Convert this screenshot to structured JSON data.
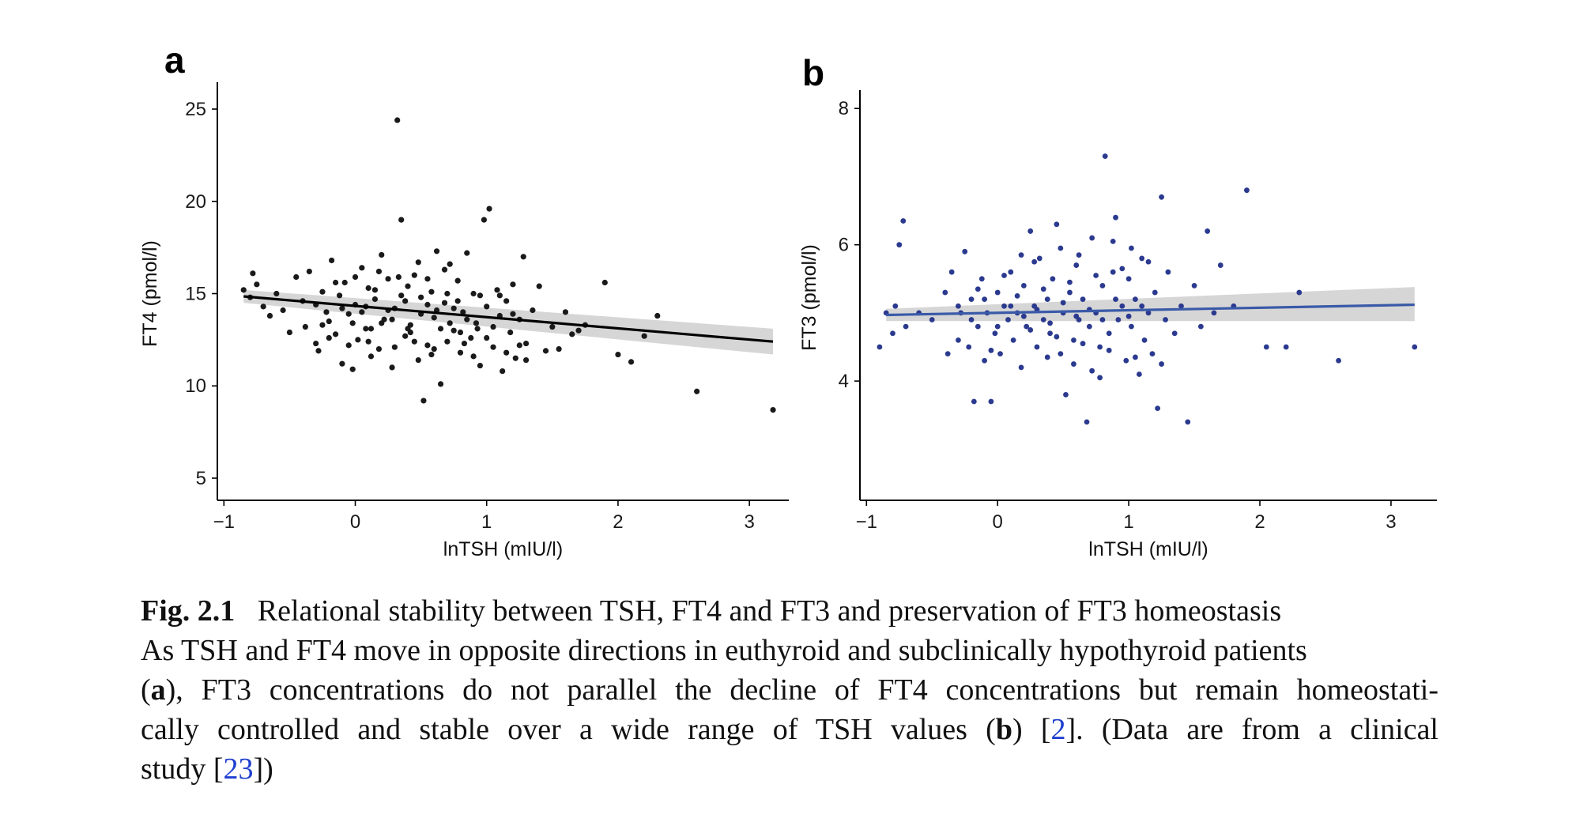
{
  "chart_data": [
    {
      "panel": "a",
      "type": "scatter",
      "xlabel": "lnTSH (mIU/l)",
      "ylabel": "FT4 (pmol/l)",
      "xlim": [
        -1.05,
        3.3
      ],
      "ylim": [
        3.8,
        26.2
      ],
      "xticks": [
        -1,
        0,
        1,
        2,
        3
      ],
      "xtick_labels": [
        "−1",
        "0",
        "1",
        "2",
        "3"
      ],
      "yticks": [
        5,
        10,
        15,
        20,
        25
      ],
      "point_color": "#1a1a1a",
      "line_color": "#000000",
      "band_color": "#cfcfcf",
      "fit": {
        "x": [
          -0.85,
          3.18
        ],
        "y": [
          14.85,
          12.4
        ],
        "ci_lower": [
          14.5,
          11.7
        ],
        "ci_upper": [
          15.2,
          13.1
        ]
      },
      "points": [
        [
          -0.85,
          15.2
        ],
        [
          -0.8,
          14.8
        ],
        [
          -0.78,
          16.1
        ],
        [
          -0.75,
          15.5
        ],
        [
          -0.7,
          14.3
        ],
        [
          -0.65,
          13.8
        ],
        [
          -0.6,
          15.0
        ],
        [
          -0.55,
          14.1
        ],
        [
          -0.5,
          12.9
        ],
        [
          -0.45,
          15.9
        ],
        [
          -0.4,
          14.6
        ],
        [
          -0.38,
          13.2
        ],
        [
          -0.35,
          16.2
        ],
        [
          -0.3,
          12.3
        ],
        [
          -0.28,
          11.9
        ],
        [
          -0.25,
          15.1
        ],
        [
          -0.22,
          14.0
        ],
        [
          -0.2,
          13.5
        ],
        [
          -0.18,
          16.8
        ],
        [
          -0.15,
          12.8
        ],
        [
          -0.12,
          14.9
        ],
        [
          -0.1,
          11.2
        ],
        [
          -0.08,
          15.6
        ],
        [
          -0.05,
          13.9
        ],
        [
          -0.02,
          10.9
        ],
        [
          0.0,
          14.4
        ],
        [
          0.02,
          12.5
        ],
        [
          0.05,
          16.4
        ],
        [
          0.08,
          13.1
        ],
        [
          0.1,
          15.3
        ],
        [
          0.12,
          11.6
        ],
        [
          0.15,
          14.7
        ],
        [
          0.18,
          12.0
        ],
        [
          0.2,
          17.1
        ],
        [
          0.22,
          13.6
        ],
        [
          0.25,
          15.8
        ],
        [
          0.28,
          11.0
        ],
        [
          0.3,
          14.2
        ],
        [
          0.32,
          24.4
        ],
        [
          0.35,
          19.0
        ],
        [
          0.38,
          12.7
        ],
        [
          0.4,
          15.4
        ],
        [
          0.42,
          13.3
        ],
        [
          0.45,
          16.0
        ],
        [
          0.48,
          11.4
        ],
        [
          0.5,
          14.8
        ],
        [
          0.52,
          9.2
        ],
        [
          0.55,
          12.2
        ],
        [
          0.58,
          15.1
        ],
        [
          0.6,
          13.7
        ],
        [
          0.62,
          17.3
        ],
        [
          0.65,
          10.1
        ],
        [
          0.68,
          14.5
        ],
        [
          0.7,
          12.4
        ],
        [
          0.72,
          16.6
        ],
        [
          0.75,
          13.0
        ],
        [
          0.78,
          15.7
        ],
        [
          0.8,
          11.8
        ],
        [
          0.82,
          14.0
        ],
        [
          0.85,
          17.2
        ],
        [
          0.88,
          12.6
        ],
        [
          0.9,
          15.0
        ],
        [
          0.92,
          13.4
        ],
        [
          0.95,
          11.1
        ],
        [
          0.98,
          19.0
        ],
        [
          1.0,
          14.3
        ],
        [
          1.02,
          19.6
        ],
        [
          1.05,
          12.1
        ],
        [
          1.08,
          15.2
        ],
        [
          1.1,
          13.8
        ],
        [
          1.12,
          10.8
        ],
        [
          1.15,
          14.6
        ],
        [
          1.18,
          12.9
        ],
        [
          1.2,
          15.5
        ],
        [
          1.22,
          11.5
        ],
        [
          1.25,
          13.6
        ],
        [
          1.28,
          17.0
        ],
        [
          1.3,
          12.3
        ],
        [
          1.35,
          14.1
        ],
        [
          1.4,
          15.4
        ],
        [
          1.45,
          11.9
        ],
        [
          1.5,
          13.2
        ],
        [
          1.55,
          12.0
        ],
        [
          1.6,
          14.0
        ],
        [
          1.65,
          12.8
        ],
        [
          1.7,
          13.0
        ],
        [
          1.75,
          13.3
        ],
        [
          1.9,
          15.6
        ],
        [
          2.0,
          11.7
        ],
        [
          2.1,
          11.3
        ],
        [
          2.2,
          12.7
        ],
        [
          2.3,
          13.8
        ],
        [
          2.6,
          9.7
        ],
        [
          3.18,
          8.7
        ],
        [
          -0.3,
          14.4
        ],
        [
          -0.25,
          13.3
        ],
        [
          -0.2,
          12.6
        ],
        [
          -0.15,
          15.6
        ],
        [
          -0.1,
          14.2
        ],
        [
          -0.05,
          12.2
        ],
        [
          0.0,
          15.9
        ],
        [
          0.05,
          14.0
        ],
        [
          0.1,
          12.4
        ],
        [
          0.15,
          15.2
        ],
        [
          0.2,
          13.4
        ],
        [
          0.25,
          14.1
        ],
        [
          0.3,
          12.1
        ],
        [
          0.35,
          14.9
        ],
        [
          0.4,
          13.1
        ],
        [
          0.45,
          12.4
        ],
        [
          0.5,
          13.9
        ],
        [
          0.55,
          14.4
        ],
        [
          0.6,
          12.0
        ],
        [
          0.65,
          13.1
        ],
        [
          0.7,
          15.0
        ],
        [
          0.75,
          14.2
        ],
        [
          0.8,
          12.9
        ],
        [
          0.85,
          13.6
        ],
        [
          0.9,
          11.6
        ],
        [
          0.95,
          14.9
        ],
        [
          1.0,
          12.6
        ],
        [
          1.05,
          13.2
        ],
        [
          1.1,
          14.9
        ],
        [
          1.15,
          11.8
        ],
        [
          1.2,
          13.9
        ],
        [
          1.25,
          12.2
        ],
        [
          1.3,
          11.4
        ],
        [
          0.62,
          14.1
        ],
        [
          0.55,
          15.8
        ],
        [
          0.48,
          16.7
        ],
        [
          0.42,
          12.9
        ],
        [
          0.38,
          14.6
        ],
        [
          0.33,
          15.9
        ],
        [
          0.28,
          13.6
        ],
        [
          0.18,
          16.2
        ],
        [
          0.12,
          13.1
        ],
        [
          0.08,
          14.3
        ],
        [
          -0.02,
          13.4
        ],
        [
          0.72,
          13.4
        ],
        [
          0.78,
          14.6
        ],
        [
          0.83,
          12.3
        ],
        [
          0.93,
          13.1
        ],
        [
          0.68,
          16.3
        ],
        [
          0.58,
          11.7
        ]
      ]
    },
    {
      "panel": "b",
      "type": "scatter",
      "xlabel": "lnTSH (mIU/l)",
      "ylabel": "FT3 (pmol/l)",
      "xlim": [
        -1.05,
        3.35
      ],
      "ylim": [
        2.25,
        8.2
      ],
      "xticks": [
        -1,
        0,
        1,
        2,
        3
      ],
      "xtick_labels": [
        "−1",
        "0",
        "1",
        "2",
        "3"
      ],
      "yticks": [
        4,
        6,
        8
      ],
      "point_color": "#2b3a8f",
      "line_color": "#3a5aa8",
      "band_color": "#cfcfcf",
      "fit": {
        "x": [
          -0.85,
          3.18
        ],
        "y": [
          4.97,
          5.12
        ],
        "ci_lower": [
          4.88,
          4.88
        ],
        "ci_upper": [
          5.06,
          5.38
        ]
      },
      "points": [
        [
          -0.9,
          4.5
        ],
        [
          -0.85,
          5.0
        ],
        [
          -0.8,
          4.7
        ],
        [
          -0.78,
          5.1
        ],
        [
          -0.75,
          6.0
        ],
        [
          -0.72,
          6.35
        ],
        [
          -0.7,
          4.8
        ],
        [
          -0.6,
          5.0
        ],
        [
          -0.5,
          4.9
        ],
        [
          -0.4,
          5.3
        ],
        [
          -0.38,
          4.4
        ],
        [
          -0.35,
          5.6
        ],
        [
          -0.3,
          4.6
        ],
        [
          -0.28,
          5.0
        ],
        [
          -0.25,
          5.9
        ],
        [
          -0.22,
          4.5
        ],
        [
          -0.2,
          5.2
        ],
        [
          -0.18,
          3.7
        ],
        [
          -0.15,
          4.8
        ],
        [
          -0.12,
          5.5
        ],
        [
          -0.1,
          4.3
        ],
        [
          -0.08,
          5.0
        ],
        [
          -0.05,
          3.7
        ],
        [
          -0.02,
          4.7
        ],
        [
          0.0,
          5.3
        ],
        [
          0.02,
          4.4
        ],
        [
          0.05,
          5.1
        ],
        [
          0.08,
          4.9
        ],
        [
          0.1,
          5.6
        ],
        [
          0.12,
          4.6
        ],
        [
          0.15,
          5.0
        ],
        [
          0.18,
          4.2
        ],
        [
          0.2,
          5.4
        ],
        [
          0.22,
          4.8
        ],
        [
          0.25,
          6.2
        ],
        [
          0.28,
          5.1
        ],
        [
          0.3,
          4.5
        ],
        [
          0.32,
          5.8
        ],
        [
          0.35,
          4.9
        ],
        [
          0.38,
          5.2
        ],
        [
          0.4,
          4.7
        ],
        [
          0.42,
          5.5
        ],
        [
          0.45,
          6.3
        ],
        [
          0.48,
          4.4
        ],
        [
          0.5,
          5.0
        ],
        [
          0.52,
          3.8
        ],
        [
          0.55,
          5.3
        ],
        [
          0.58,
          4.6
        ],
        [
          0.6,
          5.7
        ],
        [
          0.62,
          4.9
        ],
        [
          0.65,
          5.2
        ],
        [
          0.68,
          3.4
        ],
        [
          0.7,
          4.8
        ],
        [
          0.72,
          6.1
        ],
        [
          0.75,
          5.0
        ],
        [
          0.78,
          4.5
        ],
        [
          0.8,
          5.4
        ],
        [
          0.82,
          7.3
        ],
        [
          0.85,
          4.7
        ],
        [
          0.88,
          5.6
        ],
        [
          0.9,
          6.4
        ],
        [
          0.92,
          4.9
        ],
        [
          0.95,
          5.1
        ],
        [
          0.98,
          4.3
        ],
        [
          1.0,
          5.5
        ],
        [
          1.02,
          4.8
        ],
        [
          1.05,
          5.2
        ],
        [
          1.08,
          4.1
        ],
        [
          1.1,
          5.8
        ],
        [
          1.12,
          4.6
        ],
        [
          1.15,
          5.0
        ],
        [
          1.18,
          4.4
        ],
        [
          1.2,
          5.3
        ],
        [
          1.22,
          3.6
        ],
        [
          1.25,
          6.7
        ],
        [
          1.28,
          4.9
        ],
        [
          1.3,
          5.6
        ],
        [
          1.35,
          4.7
        ],
        [
          1.4,
          5.1
        ],
        [
          1.45,
          3.4
        ],
        [
          1.5,
          5.4
        ],
        [
          1.55,
          4.8
        ],
        [
          1.6,
          6.2
        ],
        [
          1.65,
          5.0
        ],
        [
          1.7,
          5.7
        ],
        [
          1.8,
          5.1
        ],
        [
          1.9,
          6.8
        ],
        [
          2.05,
          4.5
        ],
        [
          2.2,
          4.5
        ],
        [
          2.3,
          5.3
        ],
        [
          2.6,
          4.3
        ],
        [
          3.18,
          4.5
        ],
        [
          -0.3,
          5.1
        ],
        [
          -0.2,
          4.9
        ],
        [
          -0.1,
          5.2
        ],
        [
          0.0,
          4.8
        ],
        [
          0.1,
          5.1
        ],
        [
          0.2,
          4.95
        ],
        [
          0.3,
          5.05
        ],
        [
          0.4,
          4.85
        ],
        [
          0.5,
          5.15
        ],
        [
          0.6,
          4.95
        ],
        [
          0.7,
          5.05
        ],
        [
          0.8,
          4.9
        ],
        [
          0.9,
          5.2
        ],
        [
          1.0,
          4.95
        ],
        [
          1.1,
          5.1
        ],
        [
          0.15,
          5.25
        ],
        [
          0.25,
          4.75
        ],
        [
          0.35,
          5.35
        ],
        [
          0.45,
          4.65
        ],
        [
          0.55,
          5.45
        ],
        [
          0.65,
          4.55
        ],
        [
          0.75,
          5.55
        ],
        [
          0.85,
          4.45
        ],
        [
          0.95,
          5.65
        ],
        [
          1.05,
          4.35
        ],
        [
          1.15,
          5.75
        ],
        [
          1.25,
          4.25
        ],
        [
          0.05,
          5.55
        ],
        [
          -0.05,
          4.45
        ],
        [
          -0.15,
          5.35
        ],
        [
          0.62,
          5.85
        ],
        [
          0.48,
          5.95
        ],
        [
          0.72,
          4.15
        ],
        [
          0.58,
          4.25
        ],
        [
          0.38,
          4.35
        ],
        [
          0.28,
          5.75
        ],
        [
          0.18,
          5.85
        ],
        [
          0.88,
          6.05
        ],
        [
          0.78,
          4.05
        ],
        [
          1.02,
          5.95
        ]
      ]
    }
  ],
  "panels": {
    "a": "a",
    "b": "b"
  },
  "caption": {
    "label": "Fig. 2.1",
    "title": "Relational stability between TSH, FT4 and FT3 and preservation of FT3 homeostasis",
    "line2": "As TSH and FT4 move in opposite directions in euthyroid and subclinically hypothyroid patients",
    "paren_a_open": "(",
    "a": "a",
    "line3_rest": "), FT3 concentrations do not parallel the decline of FT4 concentrations but remain homeostati-",
    "line4_start": "cally controlled and stable over a wide range of TSH values (",
    "b": "b",
    "line4_mid": ") [",
    "ref1": "2",
    "line4_end": "]. (Data are from a clinical",
    "line5_start": "study [",
    "ref2": "23",
    "line5_end": "])"
  }
}
